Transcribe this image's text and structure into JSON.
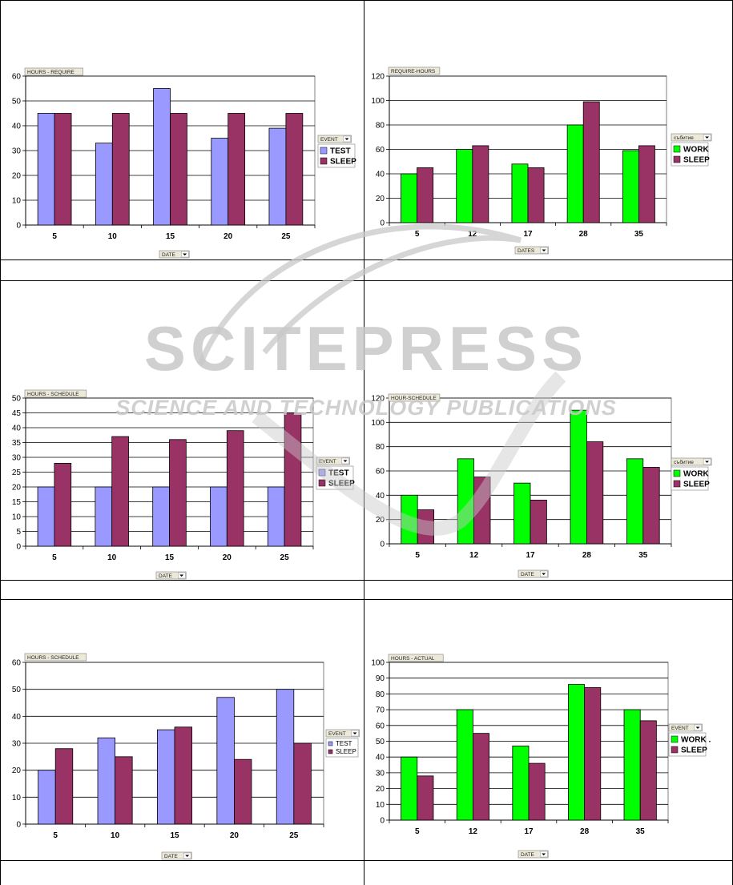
{
  "colors": {
    "test": "#9999ff",
    "sleep": "#993366",
    "work": "#00ff00",
    "gridline": "#000000",
    "field_tag_bg": "#ece9d8",
    "watermark": "#c8c8c8"
  },
  "watermark": {
    "brand": "SCITEPRESS",
    "tagline": "SCIENCE AND TECHNOLOGY PUBLICATIONS"
  },
  "chart_data": [
    {
      "type": "bar",
      "field_tag": "HOURS - REQUIRE",
      "legend_title": "EVENT",
      "axis_field": "DATE",
      "categories": [
        "5",
        "10",
        "15",
        "20",
        "25"
      ],
      "ylim": [
        0,
        60
      ],
      "yticks": [
        0,
        10,
        20,
        30,
        40,
        50,
        60
      ],
      "grid": true,
      "legend_position": "right",
      "legend_small": false,
      "series": [
        {
          "name": "TEST",
          "color_key": "test",
          "values": [
            45,
            33,
            55,
            35,
            39
          ]
        },
        {
          "name": "SLEEP",
          "color_key": "sleep",
          "values": [
            45,
            45,
            45,
            45,
            45
          ]
        }
      ]
    },
    {
      "type": "bar",
      "field_tag": "REQUIRE-HOURS",
      "legend_title": "събитие",
      "axis_field": "DATES",
      "categories": [
        "5",
        "12",
        "17",
        "28",
        "35"
      ],
      "ylim": [
        0,
        120
      ],
      "yticks": [
        0,
        20,
        40,
        60,
        80,
        100,
        120
      ],
      "grid": true,
      "legend_position": "right",
      "legend_small": false,
      "series": [
        {
          "name": "WORK",
          "color_key": "work",
          "values": [
            40,
            60,
            48,
            80,
            59
          ]
        },
        {
          "name": "SLEEP",
          "color_key": "sleep",
          "values": [
            45,
            63,
            45,
            99,
            63
          ]
        }
      ]
    },
    {
      "type": "bar",
      "field_tag": "HOURS - SCHEDULE",
      "legend_title": "EVENT",
      "axis_field": "DATE",
      "categories": [
        "5",
        "10",
        "15",
        "20",
        "25"
      ],
      "ylim": [
        0,
        50
      ],
      "yticks": [
        0,
        5,
        10,
        15,
        20,
        25,
        30,
        35,
        40,
        45,
        50
      ],
      "grid": true,
      "legend_position": "right",
      "legend_small": false,
      "series": [
        {
          "name": "TEST",
          "color_key": "test",
          "values": [
            20,
            20,
            20,
            20,
            20
          ]
        },
        {
          "name": "SLEEP",
          "color_key": "sleep",
          "values": [
            28,
            37,
            36,
            39,
            45
          ]
        }
      ]
    },
    {
      "type": "bar",
      "field_tag": "HOUR-SCHEDULE",
      "legend_title": "събитие",
      "axis_field": "DATE",
      "categories": [
        "5",
        "12",
        "17",
        "28",
        "35"
      ],
      "ylim": [
        0,
        120
      ],
      "yticks": [
        0,
        20,
        40,
        60,
        80,
        100,
        120
      ],
      "grid": true,
      "legend_position": "right",
      "legend_small": false,
      "series": [
        {
          "name": "WORK",
          "color_key": "work",
          "values": [
            40,
            70,
            50,
            110,
            70
          ]
        },
        {
          "name": "SLEEP",
          "color_key": "sleep",
          "values": [
            28,
            55,
            36,
            84,
            63
          ]
        }
      ]
    },
    {
      "type": "bar",
      "field_tag": "HOURS - SCHEDULE",
      "legend_title": "EVENT",
      "axis_field": "DATE",
      "categories": [
        "5",
        "10",
        "15",
        "20",
        "25"
      ],
      "ylim": [
        0,
        60
      ],
      "yticks": [
        0,
        10,
        20,
        30,
        40,
        50,
        60
      ],
      "grid": true,
      "legend_position": "right",
      "legend_small": true,
      "series": [
        {
          "name": "TEST",
          "color_key": "test",
          "values": [
            20,
            32,
            35,
            47,
            50
          ]
        },
        {
          "name": "SLEEP",
          "color_key": "sleep",
          "values": [
            28,
            25,
            36,
            24,
            30
          ]
        }
      ]
    },
    {
      "type": "bar",
      "field_tag": "HOURS - ACTUAL",
      "legend_title": "EVENT",
      "axis_field": "DATE",
      "categories": [
        "5",
        "12",
        "17",
        "28",
        "35"
      ],
      "ylim": [
        0,
        100
      ],
      "yticks": [
        0,
        10,
        20,
        30,
        40,
        50,
        60,
        70,
        80,
        90,
        100
      ],
      "grid": true,
      "legend_position": "right",
      "legend_small": false,
      "series": [
        {
          "name": "WORK .",
          "color_key": "work",
          "values": [
            40,
            70,
            47,
            86,
            70
          ]
        },
        {
          "name": "SLEEP",
          "color_key": "sleep",
          "values": [
            28,
            55,
            36,
            84,
            63
          ]
        }
      ]
    }
  ]
}
